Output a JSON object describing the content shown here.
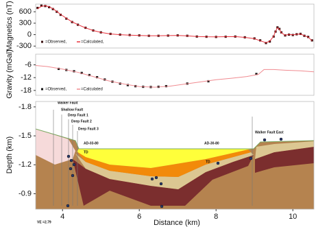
{
  "chart_data": [
    {
      "type": "line",
      "ylabel": "Magnetics (nT)",
      "xlim": [
        3.3,
        10.55
      ],
      "ylim": [
        -350,
        800
      ],
      "yticks": [
        600,
        300,
        0,
        -300
      ],
      "x": [
        3.35,
        3.45,
        3.55,
        3.65,
        3.75,
        3.85,
        3.95,
        4.1,
        4.25,
        4.4,
        4.6,
        4.8,
        5.0,
        5.25,
        5.5,
        5.75,
        6.0,
        6.25,
        6.5,
        6.75,
        7.0,
        7.25,
        7.5,
        7.75,
        8.0,
        8.25,
        8.5,
        8.75,
        9.0,
        9.15,
        9.3,
        9.4,
        9.5,
        9.55,
        9.6,
        9.65,
        9.7,
        9.8,
        9.9,
        10.0,
        10.1,
        10.2,
        10.3,
        10.4,
        10.5
      ],
      "series": [
        {
          "name": "=Observed,",
          "color": "#3a1010",
          "style": "points",
          "values": [
            700,
            760,
            750,
            720,
            670,
            600,
            520,
            420,
            330,
            260,
            180,
            110,
            60,
            20,
            0,
            -10,
            -20,
            -30,
            -30,
            -25,
            -20,
            -30,
            -50,
            -55,
            -60,
            -55,
            -50,
            -70,
            -100,
            -150,
            -220,
            -180,
            -50,
            80,
            190,
            150,
            60,
            -20,
            0,
            -10,
            10,
            20,
            -30,
            -60,
            -150
          ]
        },
        {
          "name": "=Calculated,",
          "color": "#e8323c",
          "style": "line",
          "values": [
            680,
            740,
            760,
            730,
            680,
            610,
            530,
            430,
            335,
            262,
            178,
            108,
            58,
            18,
            -2,
            -12,
            -22,
            -28,
            -28,
            -24,
            -22,
            -32,
            -48,
            -56,
            -58,
            -54,
            -52,
            -72,
            -105,
            -160,
            -210,
            -170,
            -40,
            90,
            180,
            140,
            50,
            -15,
            5,
            -5,
            10,
            15,
            -25,
            -65,
            -160
          ]
        }
      ]
    },
    {
      "type": "line",
      "ylabel": "Gravity (mGal)",
      "xlim": [
        3.3,
        10.55
      ],
      "ylim": [
        -20.3,
        -1
      ],
      "yticks": [
        -6,
        -12,
        -18
      ],
      "series": [
        {
          "name": "=Observed,",
          "color": "#111111",
          "style": "points",
          "x": [
            3.9,
            4.1,
            4.3,
            4.5,
            4.7,
            4.9,
            5.1,
            5.3,
            5.5,
            5.7,
            5.9,
            6.1,
            6.3,
            6.5,
            6.7,
            7.25,
            7.8,
            9.05
          ],
          "values": [
            -7.9,
            -8.4,
            -9.0,
            -9.8,
            -10.8,
            -11.8,
            -12.9,
            -13.9,
            -14.8,
            -15.5,
            -16.0,
            -16.3,
            -16.4,
            -16.3,
            -16.0,
            -14.8,
            -13.7,
            -10.3
          ]
        },
        {
          "name": "=Calculated",
          "color": "#f08a90",
          "style": "line",
          "x": [
            3.3,
            3.6,
            4.0,
            4.4,
            4.8,
            5.2,
            5.6,
            6.0,
            6.4,
            6.8,
            7.2,
            7.6,
            8.0,
            8.4,
            8.8,
            9.1,
            9.25,
            9.5,
            9.8,
            10.2,
            10.55
          ],
          "values": [
            -6.3,
            -6.8,
            -8,
            -9.5,
            -11.5,
            -13.5,
            -15,
            -16.2,
            -16.5,
            -16,
            -15,
            -14,
            -13,
            -12.3,
            -11.5,
            -10.5,
            -8.2,
            -8.2,
            -8.5,
            -8.8,
            -9.3
          ]
        }
      ]
    },
    {
      "type": "section",
      "ylabel": "Depth (km)",
      "xlabel": "Distance (km)",
      "xlim": [
        3.3,
        10.55
      ],
      "xticks": [
        4,
        6,
        8,
        10
      ],
      "ylim": [
        -1.856,
        -0.74
      ],
      "yticks": [
        -1.8,
        -1.5,
        -1.2,
        -0.9
      ],
      "annotations": [
        "Walker Fault",
        "Shallow Fault",
        "Deep Fault 1",
        "Deep Fault 2",
        "Deep Fault 3",
        "AD-03-80",
        "AD-30-80",
        "Walker Fault East",
        "VE =2.79",
        "TD",
        "TD"
      ]
    }
  ]
}
